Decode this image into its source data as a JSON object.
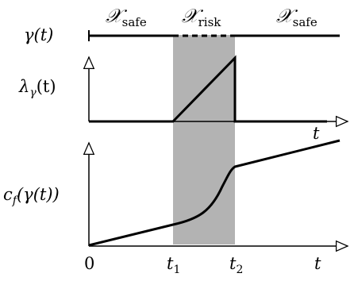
{
  "regions": {
    "left": {
      "symbol": "𝒳",
      "subscript": "safe"
    },
    "middle": {
      "symbol": "𝒳",
      "subscript": "risk"
    },
    "right": {
      "symbol": "𝒳",
      "subscript": "safe"
    }
  },
  "labels": {
    "gamma": "γ(t)",
    "lambda_main": "λ",
    "lambda_sub": "γ",
    "lambda_tail": "(t)",
    "cost_main": "c",
    "cost_sub": "f",
    "cost_tail": "(γ(t))"
  },
  "axis": {
    "origin": "0",
    "t1_main": "t",
    "t1_sub": "1",
    "t2_main": "t",
    "t2_sub": "2",
    "t_top": "t",
    "t_bottom": "t"
  },
  "colors": {
    "risk_band": "#b3b3b3",
    "ink": "#000000"
  }
}
